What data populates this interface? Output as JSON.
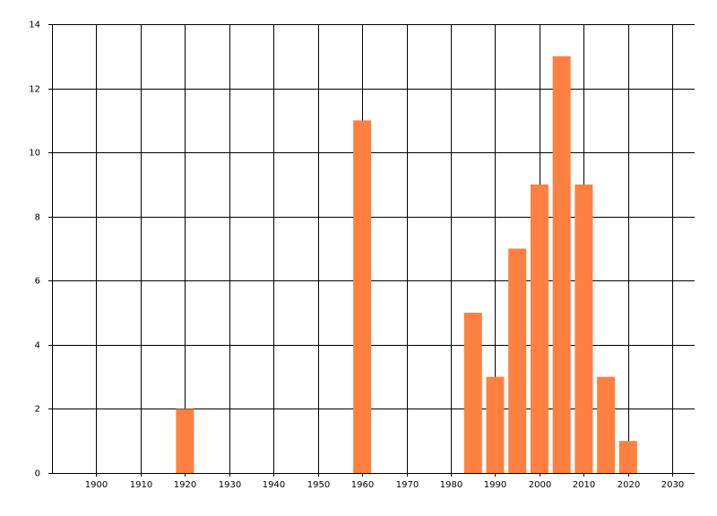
{
  "chart_data": {
    "type": "bar",
    "x": [
      1920,
      1960,
      1985,
      1990,
      1995,
      2000,
      2005,
      2010,
      2015,
      2020
    ],
    "values": [
      2,
      11,
      5,
      3,
      7,
      9,
      13,
      9,
      3,
      1
    ],
    "color": "#ff8040",
    "xlim": [
      1890,
      2035
    ],
    "xticks": [
      1900,
      1910,
      1920,
      1930,
      1940,
      1950,
      1960,
      1970,
      1980,
      1990,
      2000,
      2010,
      2020,
      2030
    ],
    "ylim": [
      0,
      14
    ],
    "yticks": [
      0,
      2,
      4,
      6,
      8,
      10,
      12,
      14
    ],
    "grid": true
  }
}
